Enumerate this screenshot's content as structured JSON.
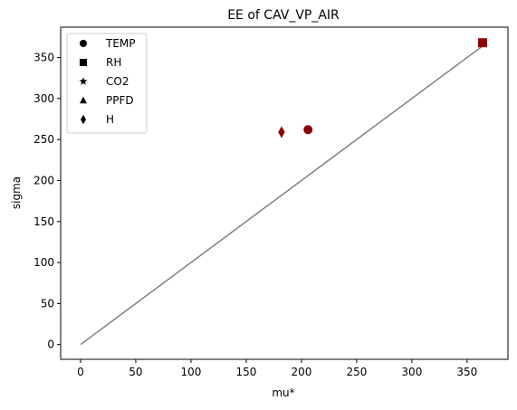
{
  "chart_data": {
    "type": "scatter",
    "title": "EE of CAV_VP_AIR",
    "xlabel": "mu*",
    "ylabel": "sigma",
    "xlim": [
      -18,
      387
    ],
    "ylim": [
      -18,
      387
    ],
    "xticks": [
      0,
      50,
      100,
      150,
      200,
      250,
      300,
      350
    ],
    "yticks": [
      0,
      50,
      100,
      150,
      200,
      250,
      300,
      350
    ],
    "reference_line": {
      "x": [
        0,
        368
      ],
      "y": [
        0,
        368
      ],
      "color": "#808080"
    },
    "marker_color": "#8b0000",
    "legend_color": "#000000",
    "legend_position": "upper-left",
    "series": [
      {
        "name": "TEMP",
        "marker": "circle",
        "x": [
          206
        ],
        "y": [
          262
        ]
      },
      {
        "name": "RH",
        "marker": "square",
        "x": [
          364
        ],
        "y": [
          368
        ]
      },
      {
        "name": "CO2",
        "marker": "star",
        "x": [],
        "y": []
      },
      {
        "name": "PPFD",
        "marker": "triangle",
        "x": [],
        "y": []
      },
      {
        "name": "H",
        "marker": "diamond",
        "x": [
          182
        ],
        "y": [
          259
        ]
      }
    ]
  }
}
